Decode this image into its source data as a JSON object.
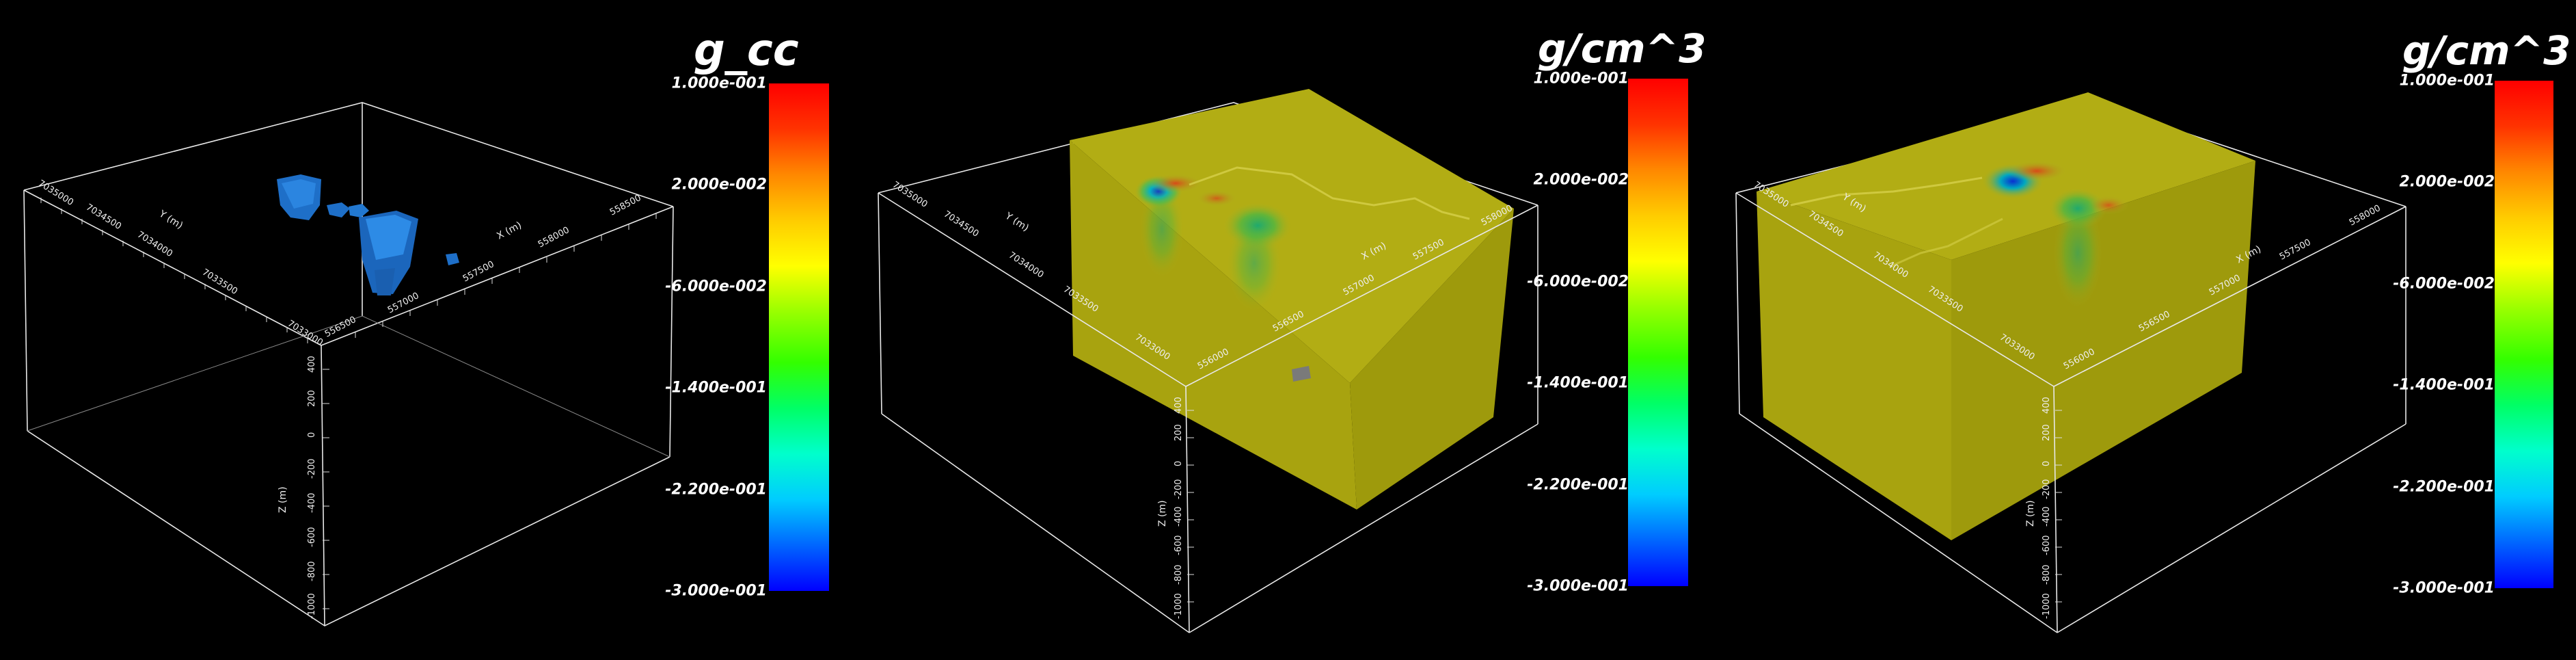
{
  "colormap": [
    "#0000ff",
    "#0066ff",
    "#00ccff",
    "#00ffcc",
    "#00ff66",
    "#33ff00",
    "#99ff00",
    "#ffff00",
    "#ffcc00",
    "#ff8800",
    "#ff3300",
    "#ff0000"
  ],
  "panels": [
    {
      "colorbar_title": "g_cc",
      "colorbar_labels": [
        "1.000e-001",
        "2.000e-002",
        "-6.000e-002",
        "-1.400e-001",
        "-2.200e-001",
        "-3.000e-001"
      ],
      "axes": {
        "x_label": "X (m)",
        "y_label": "Y (m)",
        "z_label": "Z (m)",
        "x_ticks": [
          "556500",
          "557000",
          "557500",
          "558000",
          "558500"
        ],
        "y_ticks": [
          "7033000",
          "7033500",
          "7034000",
          "7034500",
          "7035000"
        ],
        "z_ticks": [
          "400",
          "200",
          "0",
          "-200",
          "-400",
          "-600",
          "-800",
          "-1000"
        ]
      }
    },
    {
      "colorbar_title": "g/cm^3",
      "colorbar_labels": [
        "1.000e-001",
        "2.000e-002",
        "-6.000e-002",
        "-1.400e-001",
        "-2.200e-001",
        "-3.000e-001"
      ],
      "axes": {
        "x_label": "X (m)",
        "y_label": "Y (m)",
        "z_label": "Z (m)",
        "x_ticks": [
          "556000",
          "556500",
          "557000",
          "557500",
          "558000"
        ],
        "y_ticks": [
          "7033000",
          "7033500",
          "7034000",
          "7034500",
          "7035000"
        ],
        "z_ticks": [
          "400",
          "200",
          "0",
          "-200",
          "-400",
          "-600",
          "-800",
          "-1000"
        ]
      }
    },
    {
      "colorbar_title": "g/cm^3",
      "colorbar_labels": [
        "1.000e-001",
        "2.000e-002",
        "-6.000e-002",
        "-1.400e-001",
        "-2.200e-001",
        "-3.000e-001"
      ],
      "axes": {
        "x_label": "X (m)",
        "y_label": "Y (m)",
        "z_label": "Z (m)",
        "x_ticks": [
          "556000",
          "556500",
          "557000",
          "557500",
          "558000"
        ],
        "y_ticks": [
          "7033000",
          "7033500",
          "7034000",
          "7034500",
          "7035000"
        ],
        "z_ticks": [
          "400",
          "200",
          "0",
          "-200",
          "-400",
          "-600",
          "-800",
          "-1000"
        ]
      }
    }
  ]
}
